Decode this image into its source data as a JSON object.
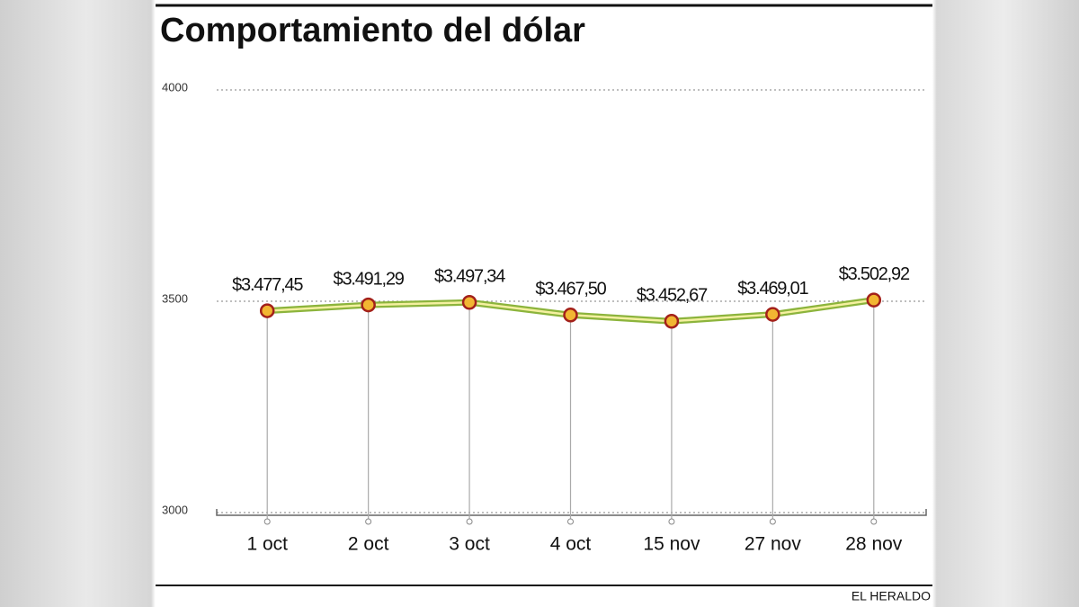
{
  "chart_data": {
    "type": "line",
    "title": "Comportamiento del dólar",
    "source": "EL HERALDO",
    "categories": [
      "1 oct",
      "2 oct",
      "3 oct",
      "4 oct",
      "15 nov",
      "27 nov",
      "28 nov"
    ],
    "values": [
      3477.45,
      3491.29,
      3497.34,
      3467.5,
      3452.67,
      3469.01,
      3502.92
    ],
    "value_labels": [
      "$3.477,45",
      "$3.491,29",
      "$3.497,34",
      "$3.467,50",
      "$3.452,67",
      "$3.469,01",
      "$3.502,92"
    ],
    "color": "#8cb43c",
    "marker_color": "#f2b632",
    "ylim": [
      3000,
      4000
    ],
    "yticks": [
      3000,
      3500,
      4000
    ],
    "grid": true
  }
}
